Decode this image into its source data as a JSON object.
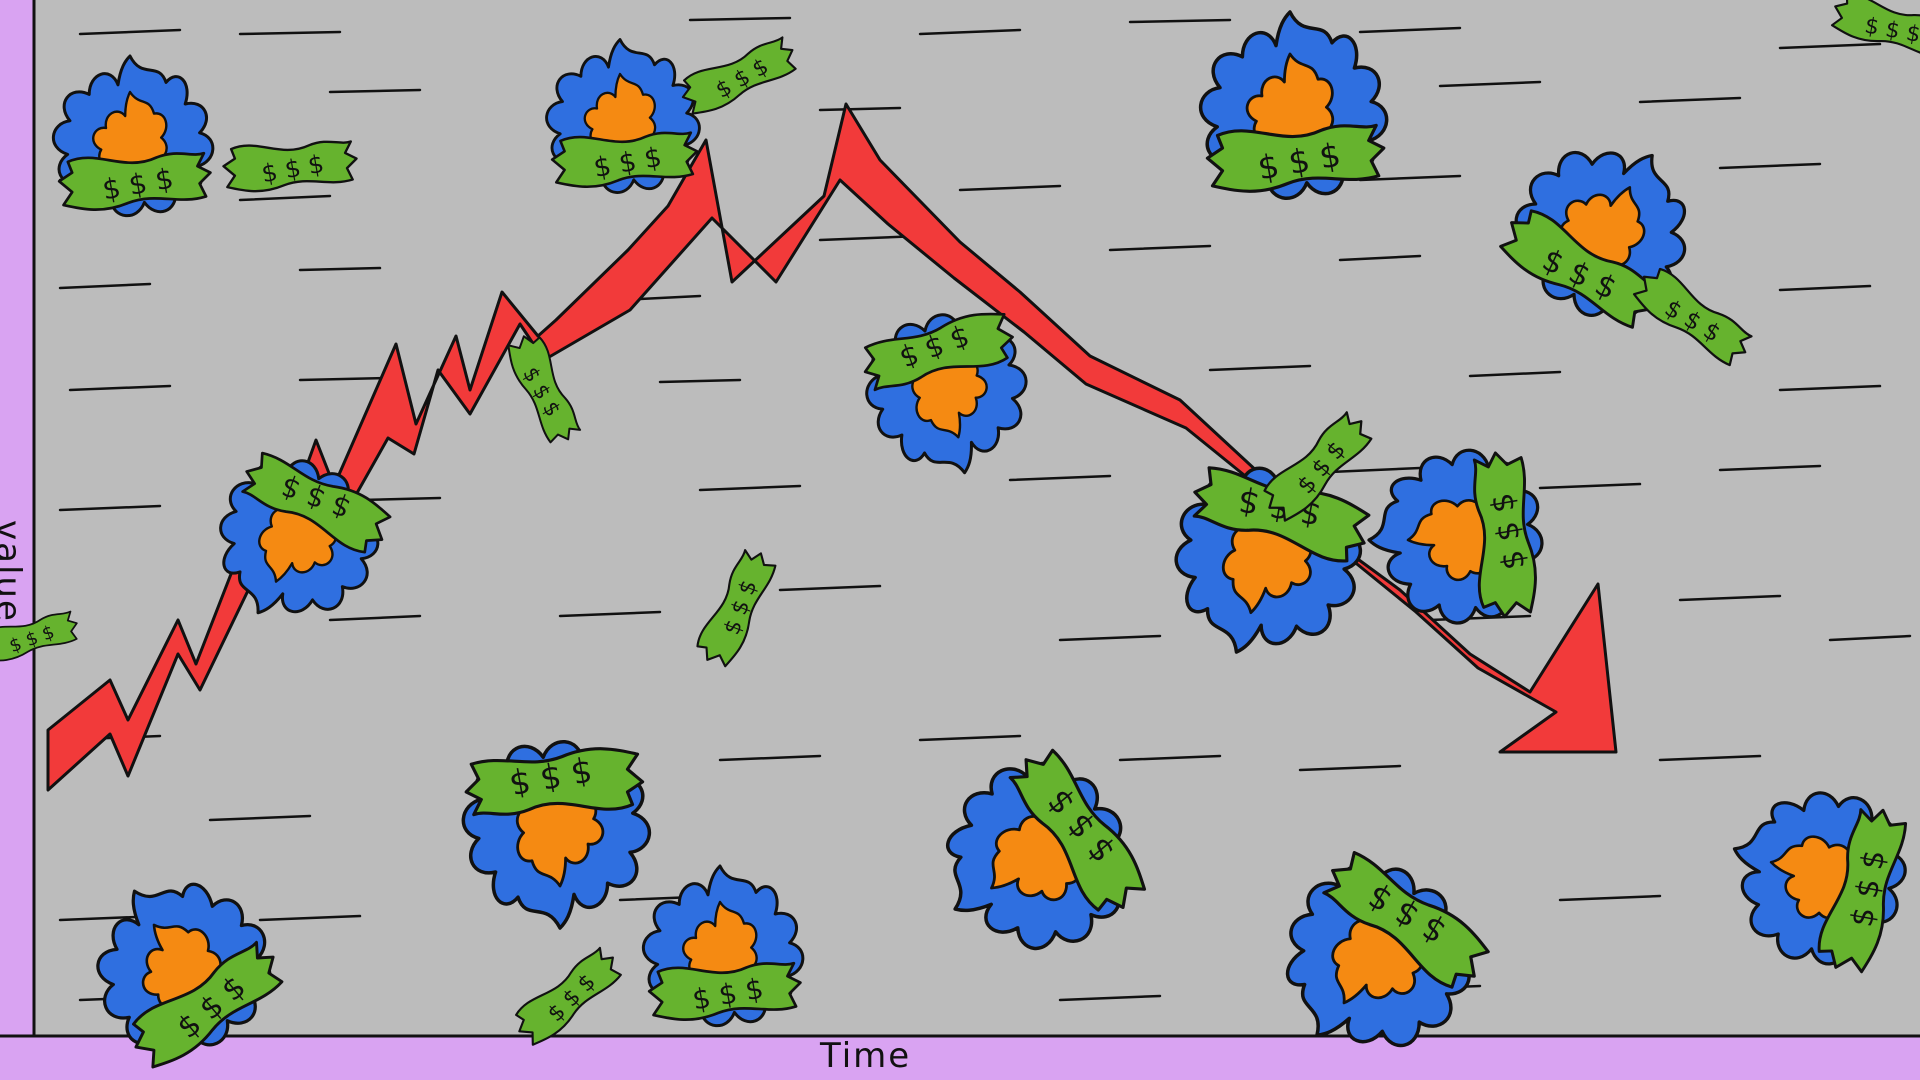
{
  "axes": {
    "x_label": "Time",
    "y_label": "value"
  },
  "colors": {
    "page_background": "#d9a3f2",
    "chart_background": "#bcbcbc",
    "trend_arrow": "#f23a3a",
    "bill": "#66b32e",
    "flame_outer": "#2f6fe0",
    "flame_inner": "#f58a12",
    "ink": "#111111"
  },
  "trend": {
    "direction_early": "rising",
    "direction_late": "falling"
  },
  "illustration": {
    "burning_money_icon": "burning-dollar-bill-icon",
    "bill_icon": "dollar-bill-icon",
    "wind_icon": "wind-streak-icon"
  }
}
